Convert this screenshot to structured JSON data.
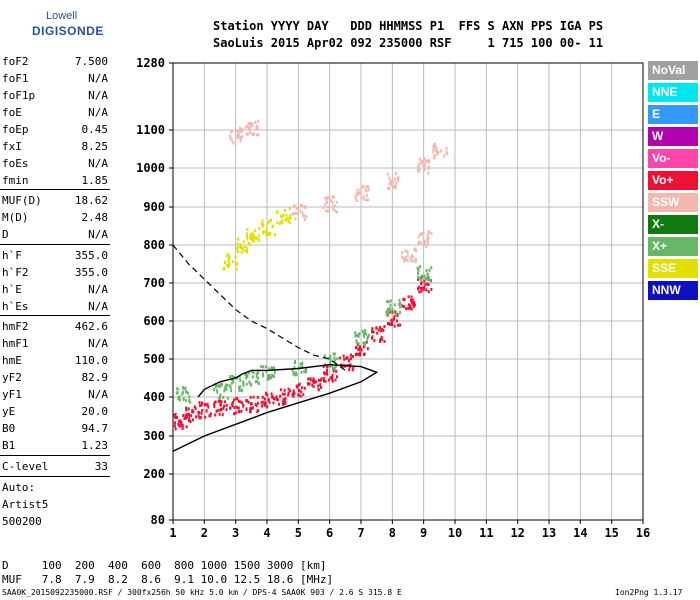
{
  "logo": {
    "top": "Lowell",
    "bottom": "DIGISONDE"
  },
  "header": {
    "line1": "Station YYYY DAY   DDD HHMMSS P1  FFS S AXN PPS IGA PS",
    "line2": "SaoLuis 2015 Apr02 092 235000 RSF     1 715 100 00- 11"
  },
  "params": [
    {
      "name": "foF2",
      "value": "7.500"
    },
    {
      "name": "foF1",
      "value": "N/A"
    },
    {
      "name": "foF1p",
      "value": "N/A"
    },
    {
      "name": "foE",
      "value": "N/A"
    },
    {
      "name": "foEp",
      "value": "0.45"
    },
    {
      "name": "fxI",
      "value": "8.25"
    },
    {
      "name": "foEs",
      "value": "N/A"
    },
    {
      "name": "fmin",
      "value": "1.85"
    },
    {
      "name": "MUF(D)",
      "value": "18.62"
    },
    {
      "name": "M(D)",
      "value": "2.48"
    },
    {
      "name": "D",
      "value": "N/A"
    },
    {
      "name": "h`F",
      "value": "355.0"
    },
    {
      "name": "h`F2",
      "value": "355.0"
    },
    {
      "name": "h`E",
      "value": "N/A"
    },
    {
      "name": "h`Es",
      "value": "N/A"
    },
    {
      "name": "hmF2",
      "value": "462.6"
    },
    {
      "name": "hmF1",
      "value": "N/A"
    },
    {
      "name": "hmE",
      "value": "110.0"
    },
    {
      "name": "yF2",
      "value": "82.9"
    },
    {
      "name": "yF1",
      "value": "N/A"
    },
    {
      "name": "yE",
      "value": "20.0"
    },
    {
      "name": "B0",
      "value": "94.7"
    },
    {
      "name": "B1",
      "value": "1.23"
    },
    {
      "name": "C-level",
      "value": "33"
    }
  ],
  "auto": {
    "l1": "Auto:",
    "l2": "Artist5",
    "l3": "500200"
  },
  "legend": [
    {
      "label": "NoVal",
      "color": "#a0a0a0"
    },
    {
      "label": "NNE",
      "color": "#00e5ee"
    },
    {
      "label": "E",
      "color": "#3399ff"
    },
    {
      "label": "W",
      "color": "#b000b0"
    },
    {
      "label": "Vo-",
      "color": "#ff44aa"
    },
    {
      "label": "Vo+",
      "color": "#ee1133"
    },
    {
      "label": "SSW",
      "color": "#f2b8b0"
    },
    {
      "label": "X-",
      "color": "#107a10"
    },
    {
      "label": "X+",
      "color": "#66b866"
    },
    {
      "label": "SSE",
      "color": "#e0e000"
    },
    {
      "label": "NNW",
      "color": "#1010c0"
    }
  ],
  "footer": {
    "dline": "D     100  200  400  600  800 1000 1500 3000 [km]",
    "mline": "MUF   7.8  7.9  8.2  8.6  9.1 10.0 12.5 18.6 [MHz]",
    "file": "SAA0K_2015092235000.RSF / 300fx256h 50 kHz 5.0 km / DPS-4 SAA0K 903 / 2.6 S 315.8 E",
    "version": "Ion2Png 1.3.17"
  },
  "chart_data": {
    "type": "scatter",
    "x_ticks": [
      1,
      2,
      3,
      4,
      5,
      6,
      7,
      8,
      9,
      10,
      11,
      12,
      13,
      14,
      15,
      16
    ],
    "y_ticks": [
      80,
      200,
      300,
      400,
      500,
      600,
      700,
      800,
      900,
      1000,
      1100,
      1280
    ],
    "xlim": [
      1,
      16
    ],
    "ylim": [
      80,
      1280
    ],
    "grid": true,
    "legend_position": "right",
    "series": [
      {
        "name": "Vo+",
        "color": "#ee1133",
        "points": [
          [
            1.2,
            340
          ],
          [
            1.5,
            360
          ],
          [
            2.0,
            370
          ],
          [
            2.5,
            375
          ],
          [
            3.0,
            380
          ],
          [
            3.5,
            385
          ],
          [
            4.0,
            395
          ],
          [
            4.5,
            405
          ],
          [
            5.0,
            420
          ],
          [
            5.5,
            440
          ],
          [
            6.0,
            465
          ],
          [
            6.5,
            495
          ],
          [
            7.0,
            530
          ],
          [
            7.5,
            570
          ],
          [
            8.0,
            610
          ],
          [
            8.5,
            650
          ],
          [
            9.0,
            700
          ]
        ]
      },
      {
        "name": "X+",
        "color": "#66b866",
        "points": [
          [
            1.3,
            410
          ],
          [
            2.5,
            420
          ],
          [
            3.0,
            440
          ],
          [
            3.5,
            455
          ],
          [
            4.0,
            470
          ],
          [
            5.0,
            480
          ],
          [
            6.0,
            500
          ],
          [
            7.0,
            560
          ],
          [
            8.0,
            640
          ],
          [
            9.0,
            730
          ]
        ]
      },
      {
        "name": "SSE",
        "color": "#e0e000",
        "points": [
          [
            2.8,
            760
          ],
          [
            3.2,
            800
          ],
          [
            3.5,
            830
          ],
          [
            4.0,
            850
          ],
          [
            4.5,
            880
          ]
        ]
      },
      {
        "name": "SSW",
        "color": "#f2b8b0",
        "points": [
          [
            3.0,
            1090
          ],
          [
            3.5,
            1110
          ],
          [
            5.0,
            890
          ],
          [
            6.0,
            910
          ],
          [
            7.0,
            940
          ],
          [
            8.0,
            970
          ],
          [
            9.0,
            1010
          ],
          [
            9.5,
            1050
          ],
          [
            8.5,
            780
          ],
          [
            9.0,
            820
          ]
        ]
      }
    ],
    "profile_curve": [
      [
        1.0,
        260
      ],
      [
        2.0,
        300
      ],
      [
        3.0,
        330
      ],
      [
        4.0,
        360
      ],
      [
        5.0,
        385
      ],
      [
        6.0,
        410
      ],
      [
        7.0,
        440
      ],
      [
        7.5,
        465
      ],
      [
        7.0,
        480
      ],
      [
        6.0,
        485
      ],
      [
        5.0,
        475
      ],
      [
        4.0,
        470
      ],
      [
        3.5,
        470
      ],
      [
        3.2,
        460
      ],
      [
        3.0,
        450
      ],
      [
        2.5,
        440
      ],
      [
        2.0,
        420
      ],
      [
        1.8,
        400
      ]
    ],
    "muf_curve": [
      [
        1.0,
        800
      ],
      [
        1.5,
        750
      ],
      [
        2.0,
        710
      ],
      [
        2.5,
        670
      ],
      [
        3.0,
        630
      ],
      [
        3.5,
        600
      ],
      [
        4.0,
        580
      ],
      [
        4.5,
        555
      ],
      [
        5.0,
        530
      ],
      [
        5.5,
        510
      ],
      [
        6.0,
        500
      ],
      [
        6.5,
        470
      ]
    ]
  }
}
